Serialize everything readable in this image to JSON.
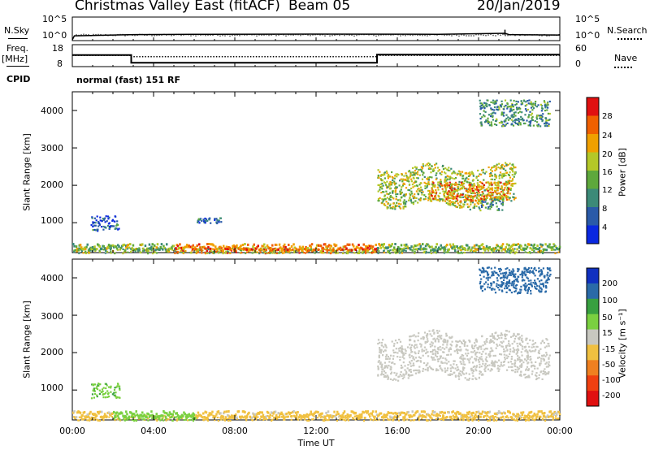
{
  "header": {
    "title": "Christmas Valley East (fitACF)",
    "beam": "Beam 05",
    "date": "20/Jan/2019"
  },
  "strip1": {
    "left_label": "N.Sky",
    "left_ticks": [
      "10^5",
      "10^0"
    ],
    "right_ticks": [
      "10^5",
      "10^0"
    ],
    "right_label": "N.Search"
  },
  "strip2": {
    "left_label_1": "Freq.",
    "left_label_2": "[MHz]",
    "left_ticks": [
      "18",
      "8"
    ],
    "right_ticks": [
      "60",
      "0"
    ],
    "right_label": "Nave"
  },
  "strip3": {
    "left_label": "CPID",
    "mode_text": "normal (fast) 151 RF"
  },
  "power_panel": {
    "ylabel": "Slant Range [km]",
    "yticks": [
      "4000",
      "3000",
      "2000",
      "1000"
    ],
    "colorbar_label": "Power [dB]",
    "colorbar_ticks": [
      "28",
      "24",
      "20",
      "16",
      "12",
      "8",
      "4"
    ],
    "colors": [
      "#0a28e0",
      "#2a5aa8",
      "#3c8a78",
      "#5ea83c",
      "#b4c828",
      "#f0a000",
      "#f06000",
      "#e01010"
    ]
  },
  "velocity_panel": {
    "ylabel": "Slant Range [km]",
    "yticks": [
      "4000",
      "3000",
      "2000",
      "1000"
    ],
    "colorbar_label": "Velocity [m s⁻¹]",
    "colorbar_ticks": [
      "200",
      "100",
      "50",
      "15",
      "-15",
      "-50",
      "-100",
      "-200"
    ],
    "colors": [
      "#1030c0",
      "#2a6aa8",
      "#38a040",
      "#7ad040",
      "#c8c8c0",
      "#f0c040",
      "#f08020",
      "#f04010",
      "#e01010"
    ]
  },
  "xaxis": {
    "ticks": [
      "00:00",
      "04:00",
      "08:00",
      "12:00",
      "16:00",
      "20:00",
      "00:00"
    ],
    "label": "Time UT"
  },
  "chart_data": [
    {
      "type": "line",
      "title": "N.Sky / N.Search",
      "x_unit": "hours UT",
      "xlim": [
        0,
        24
      ],
      "yscale": "log",
      "ylim": [
        1,
        100000
      ],
      "series": [
        {
          "name": "N.Sky",
          "x": [
            0,
            0.1,
            3,
            6,
            12,
            18,
            21.3,
            21.5,
            24
          ],
          "y": [
            1,
            8,
            15,
            18,
            20,
            18,
            30,
            15,
            12
          ]
        }
      ]
    },
    {
      "type": "line",
      "title": "Freq. / Nave",
      "x_unit": "hours UT",
      "xlim": [
        0,
        24
      ],
      "ylim": [
        8,
        18
      ],
      "series": [
        {
          "name": "Freq. [MHz]",
          "x": [
            0,
            2.9,
            2.9,
            15,
            15,
            24
          ],
          "y": [
            13.3,
            13.3,
            9.5,
            9.5,
            13.5,
            13.5
          ]
        },
        {
          "name": "Nave",
          "x": [
            0,
            2.9,
            2.9,
            15,
            15,
            24
          ],
          "y": [
            31,
            31,
            27,
            27,
            31,
            31
          ]
        }
      ]
    },
    {
      "type": "heatmap",
      "title": "Power [dB]",
      "x_unit": "hours UT",
      "xlim": [
        0,
        24
      ],
      "ylim": [
        200,
        4500
      ],
      "color_range": [
        0,
        30
      ],
      "regions": [
        {
          "x": [
            0,
            24
          ],
          "y": [
            200,
            350
          ],
          "value": 14
        },
        {
          "x": [
            5,
            15
          ],
          "y": [
            200,
            330
          ],
          "value": 22
        },
        {
          "x": [
            15,
            21.8
          ],
          "y": [
            1500,
            2500
          ],
          "value": 16
        },
        {
          "x": [
            17.5,
            21.5
          ],
          "y": [
            1600,
            2100
          ],
          "value": 22
        },
        {
          "x": [
            20,
            21.2
          ],
          "y": [
            1350,
            1650
          ],
          "value": 11
        },
        {
          "x": [
            20,
            23.5
          ],
          "y": [
            3600,
            4300
          ],
          "value": 10
        },
        {
          "x": [
            0.9,
            2.3
          ],
          "y": [
            800,
            1200
          ],
          "value": 6
        },
        {
          "x": [
            6.1,
            7.3
          ],
          "y": [
            1000,
            1150
          ],
          "value": 7
        }
      ]
    },
    {
      "type": "heatmap",
      "title": "Velocity [m s⁻¹]",
      "x_unit": "hours UT",
      "xlim": [
        0,
        24
      ],
      "ylim": [
        200,
        4500
      ],
      "color_range": [
        -200,
        200
      ],
      "regions": [
        {
          "x": [
            0,
            24
          ],
          "y": [
            200,
            350
          ],
          "value": -30
        },
        {
          "x": [
            2,
            6
          ],
          "y": [
            200,
            330
          ],
          "value": 30
        },
        {
          "x": [
            15,
            23.5
          ],
          "y": [
            1400,
            2500
          ],
          "value": 0
        },
        {
          "x": [
            20,
            23.5
          ],
          "y": [
            3600,
            4300
          ],
          "value": 150
        },
        {
          "x": [
            0.9,
            2.3
          ],
          "y": [
            800,
            1200
          ],
          "value": 40
        }
      ]
    }
  ]
}
